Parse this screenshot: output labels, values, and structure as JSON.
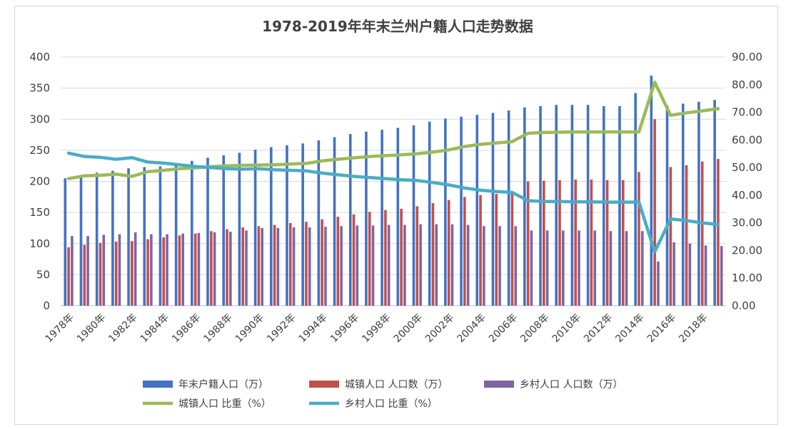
{
  "chart_data": {
    "type": "bar",
    "title": "1978-2019年年末兰州户籍人口走势数据",
    "x": [
      1978,
      1979,
      1980,
      1981,
      1982,
      1983,
      1984,
      1985,
      1986,
      1987,
      1988,
      1989,
      1990,
      1991,
      1992,
      1993,
      1994,
      1995,
      1996,
      1997,
      1998,
      1999,
      2000,
      2001,
      2002,
      2003,
      2004,
      2005,
      2006,
      2007,
      2008,
      2009,
      2010,
      2011,
      2012,
      2013,
      2014,
      2015,
      2016,
      2017,
      2018,
      2019
    ],
    "x_tick_labels": [
      "1978年",
      "1980年",
      "1982年",
      "1984年",
      "1986年",
      "1988年",
      "1990年",
      "1992年",
      "1994年",
      "1996年",
      "1998年",
      "2000年",
      "2002年",
      "2004年",
      "2006年",
      "2008年",
      "2010年",
      "2012年",
      "2014年",
      "2016年",
      "2018年"
    ],
    "y_left": {
      "ticks": [
        "0",
        "50",
        "100",
        "150",
        "200",
        "250",
        "300",
        "350",
        "400"
      ],
      "range": [
        0,
        400
      ]
    },
    "y_right": {
      "ticks": [
        "0.00",
        "10.00",
        "20.00",
        "30.00",
        "40.00",
        "50.00",
        "60.00",
        "70.00",
        "80.00",
        "90.00"
      ],
      "range": [
        0,
        90
      ]
    },
    "bar_series": [
      {
        "name": "年末户籍人口（万）",
        "color": "#4472C4",
        "values": [
          205,
          209,
          214,
          217,
          221,
          223,
          224,
          226,
          233,
          238,
          242,
          246,
          251,
          255,
          258,
          261,
          266,
          271,
          276,
          280,
          283,
          286,
          290,
          296,
          301,
          304,
          307,
          310,
          314,
          319,
          321,
          323,
          323,
          323,
          321,
          321,
          342,
          370,
          322,
          325,
          328,
          331
        ]
      },
      {
        "name": "城镇人口 人口数（万）",
        "color": "#C0504D",
        "values": [
          94,
          98,
          101,
          103,
          104,
          107,
          110,
          113,
          116,
          120,
          123,
          126,
          128,
          130,
          133,
          135,
          139,
          143,
          147,
          151,
          154,
          156,
          160,
          165,
          170,
          175,
          178,
          180,
          180,
          200,
          201,
          202,
          203,
          203,
          202,
          202,
          215,
          300,
          223,
          226,
          232,
          236
        ]
      },
      {
        "name": "乡村人口 人口数（万）",
        "color": "#8064A2",
        "values": [
          112,
          112,
          114,
          115,
          118,
          115,
          115,
          116,
          117,
          118,
          119,
          121,
          125,
          125,
          126,
          126,
          127,
          128,
          129,
          129,
          130,
          130,
          131,
          131,
          131,
          130,
          128,
          128,
          128,
          121,
          121,
          121,
          121,
          121,
          120,
          120,
          120,
          71,
          102,
          100,
          97,
          96
        ]
      }
    ],
    "line_series": [
      {
        "name": "城镇人口 比重（%）",
        "color": "#9BBB59",
        "axis": "right",
        "values": [
          46.0,
          47.0,
          47.2,
          47.6,
          46.8,
          48.5,
          49.0,
          49.6,
          49.9,
          50.3,
          50.6,
          50.8,
          50.9,
          51.0,
          51.3,
          51.5,
          52.4,
          53.0,
          53.5,
          54.0,
          54.3,
          54.6,
          55.0,
          55.6,
          56.4,
          57.6,
          58.4,
          58.9,
          59.4,
          62.4,
          62.7,
          62.8,
          62.9,
          62.9,
          62.9,
          62.9,
          62.9,
          80.9,
          68.9,
          69.8,
          70.5,
          71.3
        ]
      },
      {
        "name": "乡村人口 比重（%）",
        "color": "#4BACC6",
        "axis": "right",
        "values": [
          55.2,
          54.0,
          53.7,
          53.0,
          53.6,
          52.0,
          51.6,
          51.0,
          50.4,
          50.0,
          49.6,
          49.4,
          49.6,
          49.2,
          49.0,
          48.8,
          48.0,
          47.4,
          46.8,
          46.4,
          46.0,
          45.6,
          45.3,
          44.6,
          43.7,
          42.6,
          41.8,
          41.3,
          41.0,
          38.0,
          37.7,
          37.7,
          37.6,
          37.6,
          37.5,
          37.5,
          37.5,
          19.5,
          31.4,
          30.8,
          30.0,
          29.4
        ]
      }
    ],
    "legend_position": "bottom",
    "grid": true
  }
}
